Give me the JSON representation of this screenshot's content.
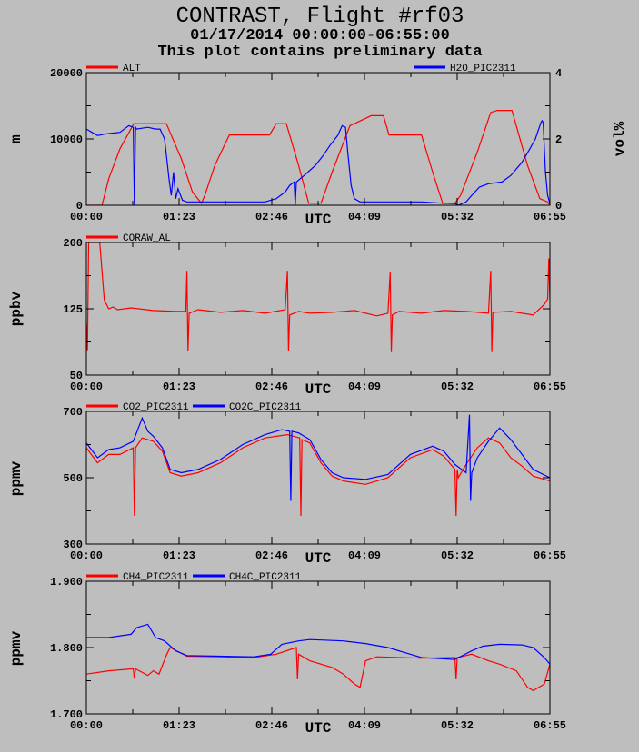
{
  "title": "CONTRAST, Flight #rf03",
  "subtitle_date": "01/17/2014 00:00:00-06:55:00",
  "subtitle_note": "This plot contains preliminary data",
  "colors": {
    "red": "#ff0000",
    "blue": "#0000ff",
    "background": "#bebebe"
  },
  "chart_data": [
    {
      "type": "line",
      "xlabel": "UTC",
      "xlim": [
        0,
        415
      ],
      "x_units": "minutes",
      "xticks": [
        "00:00",
        "01:23",
        "02:46",
        "04:09",
        "05:32",
        "06:55"
      ],
      "ylabel": "m",
      "ylim": [
        0,
        20000
      ],
      "yticks": [
        "0",
        "10000",
        "20000"
      ],
      "ylabel_right": "vol%",
      "ylim_right": [
        0,
        4
      ],
      "yticks_right": [
        "0",
        "2",
        "4"
      ],
      "series": [
        {
          "name": "ALT",
          "color": "#ff0000",
          "axis": "left",
          "x": [
            0,
            14,
            20,
            30,
            42.5,
            71.6,
            85,
            95,
            103,
            106,
            115,
            128,
            164,
            170,
            179,
            190,
            199,
            210,
            220,
            236,
            255,
            266,
            271,
            300,
            310,
            319,
            330,
            335,
            350,
            362,
            368,
            381,
            395,
            406,
            413,
            415
          ],
          "y": [
            0,
            0,
            4000,
            8500,
            12300,
            12300,
            7000,
            2000,
            300,
            1500,
            6000,
            10600,
            10600,
            12300,
            12300,
            6000,
            300,
            300,
            5000,
            12000,
            13500,
            13500,
            10600,
            10600,
            5000,
            300,
            300,
            1500,
            8000,
            14000,
            14300,
            14300,
            6000,
            1000,
            500,
            0
          ]
        },
        {
          "name": "H2O_PIC2311",
          "color": "#0000ff",
          "axis": "right",
          "x": [
            0,
            5,
            10,
            17,
            30,
            38,
            42,
            43,
            44,
            45,
            55,
            62,
            66,
            70,
            72,
            74,
            76,
            78,
            80,
            82,
            86,
            90,
            110,
            130,
            150,
            160,
            170,
            178,
            182,
            186,
            187,
            188,
            195,
            205,
            212,
            218,
            225,
            229,
            232,
            234,
            237,
            240,
            245,
            260,
            280,
            300,
            320,
            330,
            333,
            340,
            345,
            352,
            360,
            372,
            380,
            390,
            397,
            402,
            405,
            407,
            408,
            409,
            411,
            413,
            415
          ],
          "y": [
            2.3,
            2.2,
            2.1,
            2.15,
            2.2,
            2.4,
            2.35,
            0,
            2.35,
            2.3,
            2.35,
            2.3,
            2.3,
            2.0,
            1.4,
            0.8,
            0.3,
            1.0,
            0.2,
            0.5,
            0.15,
            0.1,
            0.1,
            0.1,
            0.1,
            0.1,
            0.2,
            0.4,
            0.6,
            0.7,
            0,
            0.7,
            0.9,
            1.2,
            1.5,
            1.8,
            2.1,
            2.4,
            2.35,
            1.6,
            0.6,
            0.2,
            0.1,
            0.1,
            0.1,
            0.1,
            0.06,
            0.05,
            0,
            0.1,
            0.3,
            0.55,
            0.65,
            0.7,
            0.9,
            1.3,
            1.7,
            2.0,
            2.3,
            2.5,
            2.55,
            2.5,
            1.0,
            0.3,
            0.05
          ]
        }
      ]
    },
    {
      "type": "line",
      "xlabel": "UTC",
      "xlim": [
        0,
        415
      ],
      "xticks": [
        "00:00",
        "01:23",
        "02:46",
        "04:09",
        "05:32",
        "06:55"
      ],
      "ylabel": "ppbv",
      "ylim": [
        50,
        200
      ],
      "yticks": [
        "50",
        "125",
        "200"
      ],
      "series": [
        {
          "name": "CORAW_AL",
          "color": "#ff0000",
          "x": [
            0,
            1,
            2,
            3,
            12,
            16,
            20,
            24,
            28,
            40,
            60,
            80,
            89,
            90,
            91,
            92,
            100,
            120,
            140,
            160,
            178,
            180,
            181,
            182,
            190,
            200,
            220,
            240,
            260,
            270,
            272,
            273,
            274,
            280,
            300,
            320,
            340,
            360,
            362,
            363,
            364,
            380,
            400,
            410,
            413,
            414,
            415
          ],
          "y": [
            110,
            78,
            200,
            200,
            200,
            135,
            125,
            127,
            124,
            126,
            123,
            122,
            122,
            168,
            77,
            120,
            124,
            121,
            123,
            120,
            124,
            168,
            77,
            118,
            122,
            120,
            121,
            123,
            117,
            120,
            167,
            76,
            118,
            122,
            120,
            123,
            122,
            120,
            168,
            76,
            121,
            122,
            118,
            130,
            136,
            182,
            136
          ]
        }
      ]
    },
    {
      "type": "line",
      "xlabel": "UTC",
      "xlim": [
        0,
        415
      ],
      "xticks": [
        "00:00",
        "01:23",
        "02:46",
        "04:09",
        "05:32",
        "06:55"
      ],
      "ylabel": "ppmv",
      "ylim": [
        300,
        700
      ],
      "yticks": [
        "300",
        "500",
        "700"
      ],
      "series": [
        {
          "name": "CO2_PIC2311",
          "color": "#ff0000",
          "x": [
            0,
            10,
            20,
            30,
            42,
            43,
            44,
            50,
            60,
            68,
            75,
            85,
            100,
            120,
            140,
            160,
            180,
            191,
            192,
            193,
            200,
            210,
            220,
            230,
            250,
            270,
            290,
            310,
            320,
            330,
            331,
            332,
            333,
            340,
            350,
            360,
            370,
            380,
            390,
            400,
            415
          ],
          "y": [
            590,
            545,
            570,
            570,
            590,
            385,
            590,
            620,
            610,
            580,
            515,
            505,
            515,
            545,
            590,
            620,
            630,
            620,
            385,
            615,
            605,
            545,
            505,
            490,
            480,
            500,
            560,
            585,
            565,
            525,
            385,
            525,
            500,
            540,
            590,
            620,
            605,
            560,
            535,
            505,
            490
          ]
        },
        {
          "name": "CO2C_PIC2311",
          "color": "#0000ff",
          "x": [
            0,
            10,
            20,
            30,
            42,
            50,
            55,
            60,
            68,
            75,
            85,
            100,
            120,
            140,
            160,
            175,
            182,
            183,
            184,
            190,
            200,
            210,
            220,
            230,
            250,
            270,
            290,
            310,
            320,
            330,
            340,
            343,
            344,
            345,
            350,
            360,
            370,
            380,
            390,
            400,
            415
          ],
          "y": [
            605,
            560,
            585,
            590,
            610,
            680,
            640,
            625,
            590,
            525,
            515,
            525,
            555,
            600,
            630,
            645,
            640,
            430,
            640,
            635,
            615,
            555,
            515,
            500,
            495,
            510,
            570,
            595,
            580,
            540,
            515,
            690,
            430,
            515,
            560,
            610,
            650,
            615,
            570,
            525,
            500
          ]
        }
      ]
    },
    {
      "type": "line",
      "xlabel": "UTC",
      "xlim": [
        0,
        415
      ],
      "xticks": [
        "00:00",
        "01:23",
        "02:46",
        "04:09",
        "05:32",
        "06:55"
      ],
      "ylabel": "ppmv",
      "ylim": [
        1.7,
        1.9
      ],
      "yticks": [
        "1.700",
        "1.800",
        "1.900"
      ],
      "series": [
        {
          "name": "CH4_PIC2311",
          "color": "#ff0000",
          "x": [
            0,
            20,
            42,
            43,
            44,
            55,
            60,
            65,
            72,
            75,
            90,
            120,
            150,
            170,
            188,
            189,
            190,
            200,
            220,
            230,
            240,
            245,
            250,
            260,
            300,
            330,
            331,
            332,
            345,
            360,
            370,
            385,
            395,
            400,
            410,
            415
          ],
          "y": [
            1.76,
            1.765,
            1.768,
            1.753,
            1.768,
            1.758,
            1.765,
            1.76,
            1.79,
            1.8,
            1.787,
            1.786,
            1.785,
            1.79,
            1.8,
            1.752,
            1.79,
            1.78,
            1.77,
            1.76,
            1.745,
            1.74,
            1.78,
            1.786,
            1.784,
            1.785,
            1.752,
            1.785,
            1.79,
            1.78,
            1.775,
            1.765,
            1.74,
            1.735,
            1.745,
            1.775
          ]
        },
        {
          "name": "CH4C_PIC2311",
          "color": "#0000ff",
          "x": [
            0,
            20,
            40,
            45,
            55,
            62,
            70,
            80,
            90,
            120,
            150,
            165,
            175,
            190,
            200,
            230,
            250,
            270,
            290,
            300,
            330,
            345,
            355,
            370,
            390,
            400,
            410,
            415
          ],
          "y": [
            1.815,
            1.815,
            1.82,
            1.83,
            1.835,
            1.815,
            1.81,
            1.795,
            1.788,
            1.787,
            1.786,
            1.79,
            1.805,
            1.81,
            1.812,
            1.81,
            1.806,
            1.8,
            1.79,
            1.785,
            1.782,
            1.795,
            1.802,
            1.805,
            1.804,
            1.8,
            1.785,
            1.775
          ]
        }
      ]
    }
  ]
}
